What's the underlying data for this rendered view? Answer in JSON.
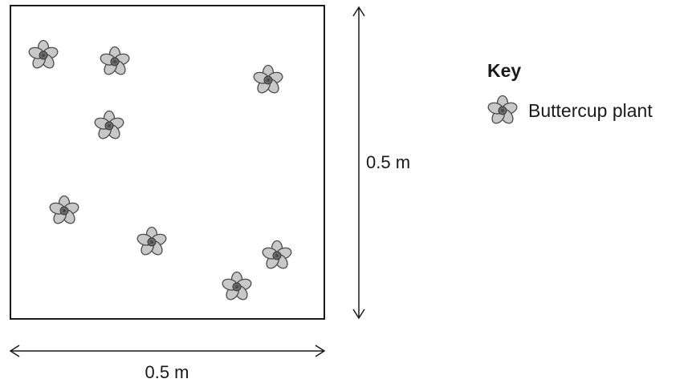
{
  "quadrat": {
    "width_label": "0.5 m",
    "height_label": "0.5 m",
    "plant_count": 8
  },
  "key": {
    "title": "Key",
    "items": [
      {
        "label": "Buttercup plant",
        "icon": "buttercup-flower-icon"
      }
    ]
  },
  "colors": {
    "outline": "#1a1a1a",
    "petal_fill": "#c8c8c8",
    "petal_stroke": "#4a4a4a",
    "center_fill": "#6a6a6a"
  }
}
